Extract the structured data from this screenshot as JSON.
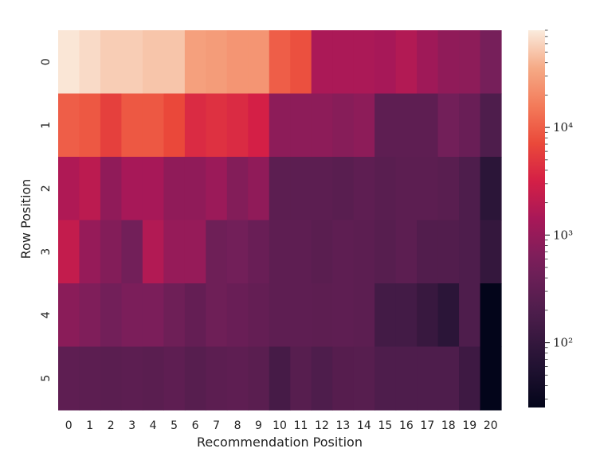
{
  "chart_data": {
    "type": "heatmap",
    "title": "",
    "xlabel": "Recommendation Position",
    "ylabel": "Row Position",
    "x_categories": [
      "0",
      "1",
      "2",
      "3",
      "4",
      "5",
      "6",
      "7",
      "8",
      "9",
      "10",
      "11",
      "12",
      "13",
      "14",
      "15",
      "16",
      "17",
      "18",
      "19",
      "20"
    ],
    "y_categories": [
      "0",
      "1",
      "2",
      "3",
      "4",
      "5"
    ],
    "color_scale": "log",
    "colormap": "rocket",
    "colorbar": {
      "range": [
        25,
        80000
      ],
      "ticks": [
        {
          "value": 100,
          "label": "10²"
        },
        {
          "value": 1000,
          "label": "10³"
        },
        {
          "value": 10000,
          "label": "10⁴"
        }
      ]
    },
    "values": [
      [
        75000,
        65000,
        55000,
        55000,
        50000,
        50000,
        30000,
        28000,
        25000,
        25000,
        10000,
        8000,
        1500,
        1500,
        1500,
        1400,
        1700,
        1200,
        900,
        850,
        550
      ],
      [
        10000,
        9000,
        6000,
        9000,
        9000,
        7000,
        4000,
        4500,
        4000,
        3200,
        850,
        850,
        850,
        750,
        850,
        300,
        300,
        300,
        500,
        400,
        200
      ],
      [
        1600,
        2000,
        900,
        1400,
        1400,
        900,
        900,
        1100,
        700,
        900,
        280,
        280,
        280,
        260,
        300,
        260,
        280,
        280,
        260,
        200,
        80
      ],
      [
        2300,
        1000,
        700,
        500,
        1700,
        1000,
        1000,
        450,
        500,
        400,
        300,
        300,
        270,
        300,
        280,
        250,
        280,
        220,
        220,
        200,
        100
      ],
      [
        800,
        650,
        500,
        600,
        600,
        450,
        350,
        450,
        400,
        350,
        300,
        300,
        290,
        300,
        280,
        150,
        150,
        110,
        80,
        200,
        25
      ],
      [
        300,
        280,
        270,
        280,
        270,
        300,
        250,
        280,
        300,
        270,
        160,
        250,
        200,
        240,
        250,
        200,
        200,
        200,
        200,
        130,
        20
      ]
    ]
  }
}
